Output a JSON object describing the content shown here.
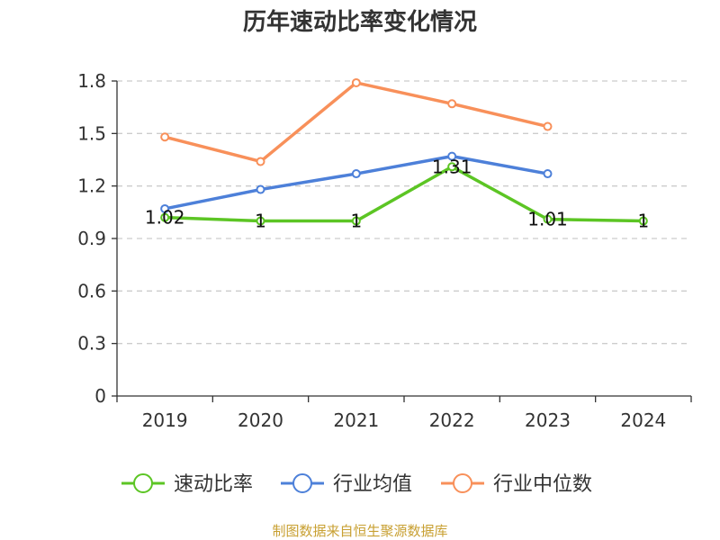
{
  "chart_data": {
    "type": "line",
    "title": "历年速动比率变化情况",
    "categories": [
      "2019",
      "2020",
      "2021",
      "2022",
      "2023",
      "2024"
    ],
    "y_ticks": [
      "0",
      "0.3",
      "0.6",
      "0.9",
      "1.2",
      "1.5",
      "1.8"
    ],
    "ylim": [
      0,
      1.8
    ],
    "grid": true,
    "legend_position": "bottom",
    "series": [
      {
        "name": "速动比率",
        "color": "#5cc524",
        "values": [
          1.02,
          1,
          1,
          1.31,
          1.01,
          1
        ],
        "labels": [
          "1.02",
          "1",
          "1",
          "1.31",
          "1.01",
          "1"
        ]
      },
      {
        "name": "行业均值",
        "color": "#4d80d9",
        "values": [
          1.07,
          1.18,
          1.27,
          1.37,
          1.27,
          null
        ]
      },
      {
        "name": "行业中位数",
        "color": "#f8905a",
        "values": [
          1.48,
          1.34,
          1.79,
          1.67,
          1.54,
          null
        ]
      }
    ]
  },
  "footer": {
    "source": "制图数据来自恒生聚源数据库"
  }
}
